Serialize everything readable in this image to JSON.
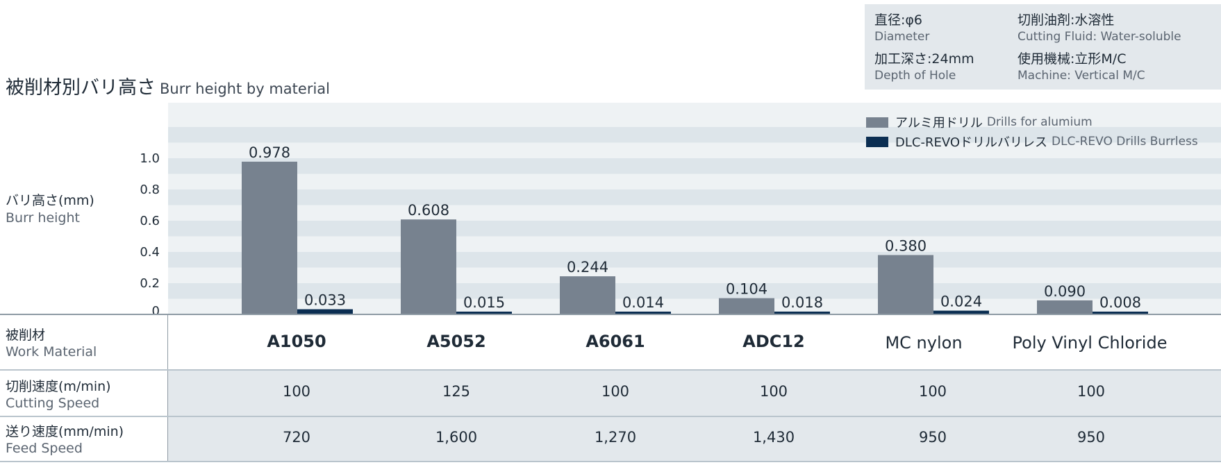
{
  "title": {
    "jp": "被削材別バリ高さ",
    "en": "Burr height by material"
  },
  "info": [
    {
      "jp": "直径:φ6",
      "en": "Diameter"
    },
    {
      "jp": "切削油剤:水溶性",
      "en": "Cutting Fluid: Water-soluble"
    },
    {
      "jp": "加工深さ:24mm",
      "en": "Depth of Hole"
    },
    {
      "jp": "使用機械:立形M/C",
      "en": "Machine: Vertical M/C"
    }
  ],
  "ylabel": {
    "jp": "バリ高さ(mm)",
    "en": "Burr height"
  },
  "legend": [
    {
      "jp": "アルミ用ドリル",
      "en": "Drills for alumium",
      "color": "#77828f"
    },
    {
      "jp": "DLC-REVOドリルバリレス",
      "en": "DLC-REVO Drills Burrless",
      "color": "#0b2e52"
    }
  ],
  "chart_data": {
    "type": "bar",
    "title": "被削材別バリ高さ Burr height by material",
    "xlabel": "",
    "ylabel": "バリ高さ(mm) Burr height",
    "categories": [
      "A1050",
      "A5052",
      "A6061",
      "ADC12",
      "MC nylon",
      "Poly Vinyl Chloride"
    ],
    "series": [
      {
        "name": "アルミ用ドリル Drills for alumium",
        "color": "#77828f",
        "values": [
          0.978,
          0.608,
          0.244,
          0.104,
          0.38,
          0.09
        ],
        "labels": [
          "0.978",
          "0.608",
          "0.244",
          "0.104",
          "0.380",
          "0.090"
        ]
      },
      {
        "name": "DLC-REVOドリルバリレス DLC-REVO Drills Burrless",
        "color": "#0b2e52",
        "values": [
          0.033,
          0.015,
          0.014,
          0.018,
          0.024,
          0.008
        ],
        "labels": [
          "0.033",
          "0.015",
          "0.014",
          "0.018",
          "0.024",
          "0.008"
        ]
      }
    ],
    "ylim": [
      0,
      1.2
    ],
    "yticks": [
      0,
      0.2,
      0.4,
      0.6,
      0.8,
      1.0
    ],
    "ytick_labels": [
      "0",
      "0.2",
      "0.4",
      "0.6",
      "0.8",
      "1.0"
    ],
    "grid": "horizontal stripes",
    "legend_position": "top-right"
  },
  "table": {
    "work_material": {
      "jp": "被削材",
      "en": "Work Material",
      "values": [
        "A1050",
        "A5052",
        "A6061",
        "ADC12",
        "MC nylon",
        "Poly Vinyl Chloride"
      ]
    },
    "cutting_speed": {
      "jp": "切削速度(m/min)",
      "en": "Cutting Speed",
      "values": [
        "100",
        "125",
        "100",
        "100",
        "100",
        "100"
      ]
    },
    "feed_speed": {
      "jp": "送り速度(mm/min)",
      "en": "Feed Speed",
      "values": [
        "720",
        "1,600",
        "1,270",
        "1,430",
        "950",
        "950"
      ]
    }
  }
}
